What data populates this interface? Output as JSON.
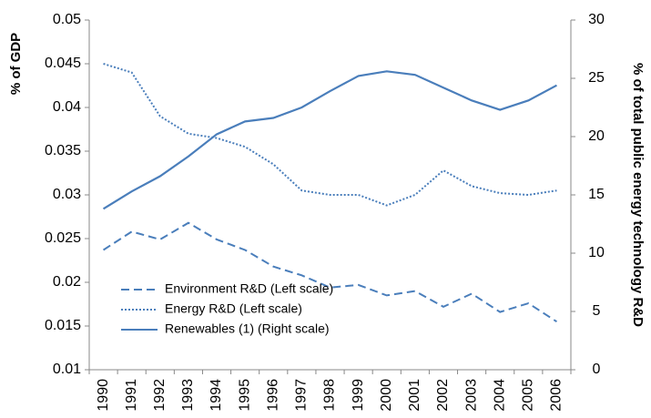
{
  "chart_data": {
    "type": "line",
    "ylabel": "% of GDP",
    "y2label": "% of total public  energy technology R&D",
    "categories": [
      "1990",
      "1991",
      "1992",
      "1993",
      "1994",
      "1995",
      "1996",
      "1997",
      "1998",
      "1999",
      "2000",
      "2001",
      "2002",
      "2003",
      "2004",
      "2005",
      "2006"
    ],
    "series": [
      {
        "name": "Environment R&D (Left scale)",
        "color": "#4a7ebb",
        "dash": "dashed",
        "values": [
          0.0237,
          0.0258,
          0.0249,
          0.0268,
          0.0249,
          0.0237,
          0.0218,
          0.0208,
          0.0194,
          0.0197,
          0.0185,
          0.019,
          0.0172,
          0.0187,
          0.0166,
          0.0176,
          0.0155
        ]
      },
      {
        "name": "Energy R&D (Left scale)",
        "color": "#4a7ebb",
        "dash": "dotted",
        "values": [
          0.045,
          0.044,
          0.039,
          0.037,
          0.0365,
          0.0355,
          0.0335,
          0.0305,
          0.03,
          0.03,
          0.0288,
          0.03,
          0.0328,
          0.031,
          0.0302,
          0.03,
          0.0305
        ]
      },
      {
        "name": "Renewables (1)  (Right scale)",
        "color": "#4a7ebb",
        "dash": "solid",
        "axis": "y2",
        "values": [
          13.8,
          15.3,
          16.6,
          18.3,
          20.2,
          21.3,
          21.6,
          22.5,
          23.9,
          25.2,
          25.6,
          25.3,
          24.2,
          23.1,
          22.3,
          23.1,
          24.4
        ]
      }
    ],
    "ylim": [
      0.01,
      0.05
    ],
    "yticks": [
      0.01,
      0.015,
      0.02,
      0.025,
      0.03,
      0.035,
      0.04,
      0.045,
      0.05
    ],
    "y2lim": [
      0,
      30
    ],
    "y2ticks": [
      0,
      5,
      10,
      15,
      20,
      25,
      30
    ],
    "legend": "lower left",
    "grid": false
  }
}
